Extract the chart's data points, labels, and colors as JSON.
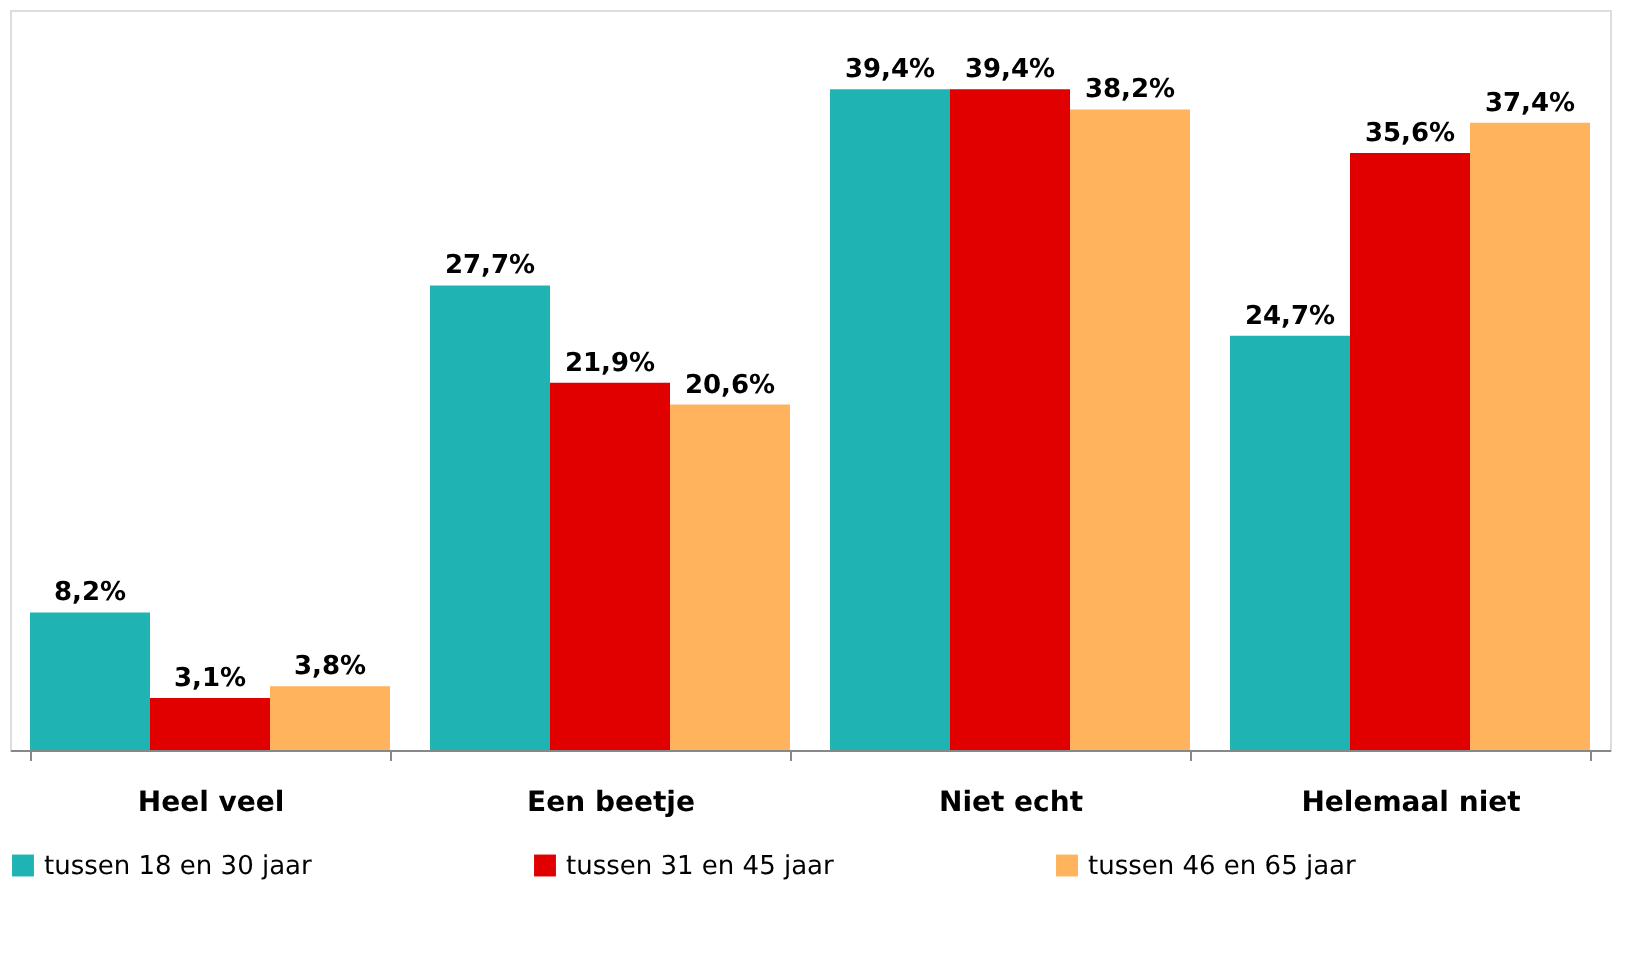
{
  "chart_data": {
    "type": "bar",
    "categories": [
      "Heel veel",
      "Een beetje",
      "Niet echt",
      "Helemaal niet"
    ],
    "series": [
      {
        "name": "tussen 18 en 30 jaar",
        "color": "#1fb3b3",
        "values": [
          8.2,
          27.7,
          39.4,
          24.7
        ],
        "value_labels": [
          "8,2%",
          "27,7%",
          "39,4%",
          "24,7%"
        ]
      },
      {
        "name": "tussen 31 en 45 jaar",
        "color": "#e00000",
        "values": [
          3.1,
          21.9,
          39.4,
          35.6
        ],
        "value_labels": [
          "3,1%",
          "21,9%",
          "39,4%",
          "35,6%"
        ]
      },
      {
        "name": "tussen 46 en 65 jaar",
        "color": "#ffb35c",
        "values": [
          3.8,
          20.6,
          38.2,
          37.4
        ],
        "value_labels": [
          "3,8%",
          "20,6%",
          "38,2%",
          "37,4%"
        ]
      }
    ],
    "legend": "bottom",
    "grid": false,
    "tick_labels": "x"
  }
}
